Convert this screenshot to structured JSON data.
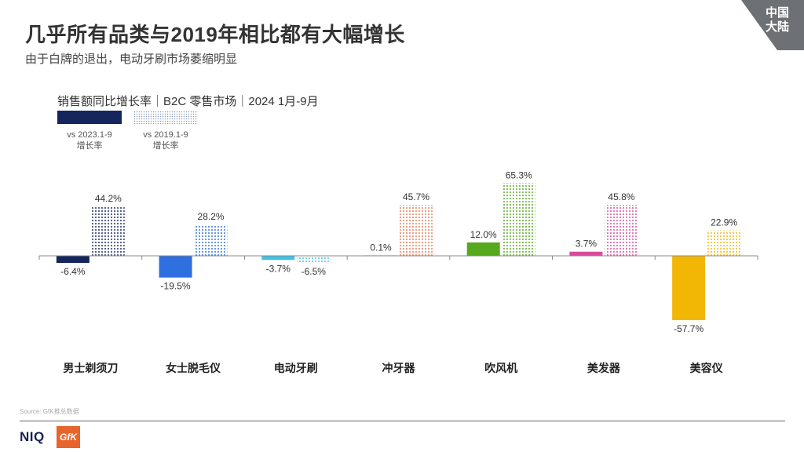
{
  "header": {
    "title": "几乎所有品类与2019年相比都有大幅增长",
    "subtitle": "由于白牌的退出，电动牙刷市场萎缩明显",
    "region_line1": "中国",
    "region_line2": "大陆"
  },
  "colors": {
    "region_badge": "#6d7175",
    "legend_2023": "#15265c",
    "axis": "#888888"
  },
  "legend": [
    {
      "label_line1": "vs 2023.1-9",
      "label_line2": "增长率"
    },
    {
      "label_line1": "vs 2019.1-9",
      "label_line2": "增长率"
    }
  ],
  "chart_data": {
    "type": "bar",
    "title": "销售额同比增长率｜B2C 零售市场｜2024 1月-9月",
    "categories": [
      "男士剃须刀",
      "女士脱毛仪",
      "电动牙刷",
      "冲牙器",
      "吹风机",
      "美发器",
      "美容仪"
    ],
    "series": [
      {
        "name": "vs 2023.1-9 增长率",
        "values": [
          -6.4,
          -19.5,
          -3.7,
          0.1,
          12.0,
          3.7,
          -57.7
        ],
        "style": "solid"
      },
      {
        "name": "vs 2019.1-9 增长率",
        "values": [
          44.2,
          28.2,
          -6.5,
          45.7,
          65.3,
          45.8,
          22.9
        ],
        "style": "dotted"
      }
    ],
    "value_labels": {
      "series0": [
        "-6.4%",
        "-19.5%",
        "-3.7%",
        "0.1%",
        "12.0%",
        "3.7%",
        "-57.7%"
      ],
      "series1": [
        "44.2%",
        "28.2%",
        "-6.5%",
        "45.7%",
        "65.3%",
        "45.8%",
        "22.9%"
      ]
    },
    "category_colors": [
      "#15265c",
      "#2f6fe0",
      "#3fc2e6",
      "#e87a4e",
      "#56a81d",
      "#d84b9c",
      "#f2b705"
    ],
    "ylim": [
      -65,
      70
    ],
    "grid": false,
    "legend_position": "top-left"
  },
  "footer": {
    "source": "Source: GfK推总数据",
    "logo_niq": "NIQ",
    "logo_gfk": "GfK"
  }
}
